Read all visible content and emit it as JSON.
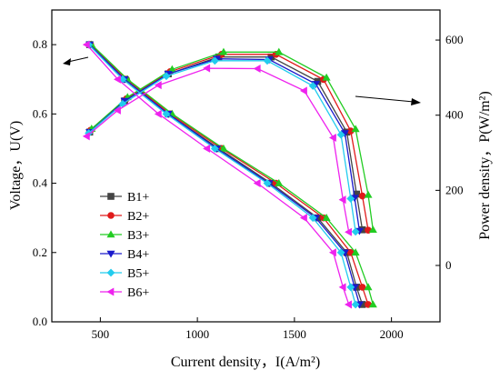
{
  "chart_data": {
    "type": "line",
    "xlabel": "Current density，I(A/m²)",
    "ylabel_left": "Voltage，U(V)",
    "ylabel_right": "Power density，P(W/m²)",
    "x_range": [
      250,
      2250
    ],
    "x_ticks": [
      500,
      1000,
      1500,
      2000
    ],
    "y_left_range": [
      0,
      0.9
    ],
    "y_left_ticks": [
      0.0,
      0.2,
      0.4,
      0.6,
      0.8
    ],
    "y_right_range": [
      -150,
      680
    ],
    "y_right_ticks": [
      0,
      200,
      400,
      600
    ],
    "legend_position": "left",
    "series": [
      {
        "name": "B1+",
        "color": "#444444",
        "marker": "square",
        "voltage": {
          "x": [
            445,
            625,
            850,
            1110,
            1380,
            1620,
            1770,
            1820,
            1850
          ],
          "y": [
            0.8,
            0.7,
            0.6,
            0.5,
            0.4,
            0.3,
            0.2,
            0.1,
            0.05
          ]
        },
        "power": {
          "x": [
            445,
            625,
            850,
            1110,
            1380,
            1620,
            1770,
            1820,
            1850
          ],
          "y": [
            355,
            438,
            510,
            555,
            555,
            490,
            355,
            190,
            95
          ]
        }
      },
      {
        "name": "B2+",
        "color": "#e01a1a",
        "marker": "circle",
        "voltage": {
          "x": [
            450,
            635,
            860,
            1125,
            1405,
            1650,
            1790,
            1850,
            1880
          ],
          "y": [
            0.8,
            0.7,
            0.6,
            0.5,
            0.4,
            0.3,
            0.2,
            0.1,
            0.05
          ]
        },
        "power": {
          "x": [
            450,
            635,
            860,
            1125,
            1405,
            1650,
            1790,
            1850,
            1880
          ],
          "y": [
            360,
            444,
            516,
            562,
            562,
            495,
            358,
            185,
            94
          ]
        }
      },
      {
        "name": "B3+",
        "color": "#22cc22",
        "marker": "triangle-up",
        "voltage": {
          "x": [
            455,
            640,
            870,
            1135,
            1420,
            1665,
            1815,
            1880,
            1905
          ],
          "y": [
            0.8,
            0.7,
            0.6,
            0.5,
            0.4,
            0.3,
            0.2,
            0.1,
            0.05
          ]
        },
        "power": {
          "x": [
            455,
            640,
            870,
            1135,
            1420,
            1665,
            1815,
            1880,
            1905
          ],
          "y": [
            364,
            448,
            522,
            568,
            568,
            500,
            363,
            188,
            95
          ]
        }
      },
      {
        "name": "B4+",
        "color": "#1a1acc",
        "marker": "triangle-down",
        "voltage": {
          "x": [
            445,
            625,
            850,
            1100,
            1370,
            1610,
            1760,
            1810,
            1835
          ],
          "y": [
            0.8,
            0.7,
            0.6,
            0.5,
            0.4,
            0.3,
            0.2,
            0.1,
            0.05
          ]
        },
        "power": {
          "x": [
            445,
            625,
            850,
            1100,
            1370,
            1610,
            1760,
            1810,
            1835
          ],
          "y": [
            355,
            438,
            510,
            550,
            548,
            483,
            352,
            180,
            92
          ]
        }
      },
      {
        "name": "B5+",
        "color": "#22ccee",
        "marker": "diamond",
        "voltage": {
          "x": [
            440,
            615,
            840,
            1090,
            1360,
            1595,
            1740,
            1790,
            1815
          ],
          "y": [
            0.8,
            0.7,
            0.6,
            0.5,
            0.4,
            0.3,
            0.2,
            0.1,
            0.05
          ]
        },
        "power": {
          "x": [
            440,
            615,
            840,
            1090,
            1360,
            1595,
            1740,
            1790,
            1815
          ],
          "y": [
            352,
            430,
            504,
            545,
            545,
            478,
            348,
            178,
            90
          ]
        }
      },
      {
        "name": "B6+",
        "color": "#ee22ee",
        "marker": "triangle-left",
        "voltage": {
          "x": [
            430,
            590,
            800,
            1050,
            1310,
            1550,
            1700,
            1750,
            1780
          ],
          "y": [
            0.8,
            0.7,
            0.6,
            0.5,
            0.4,
            0.3,
            0.2,
            0.1,
            0.05
          ]
        },
        "power": {
          "x": [
            430,
            590,
            800,
            1050,
            1310,
            1550,
            1700,
            1750,
            1780
          ],
          "y": [
            344,
            413,
            480,
            525,
            524,
            465,
            340,
            175,
            89
          ]
        }
      }
    ]
  }
}
